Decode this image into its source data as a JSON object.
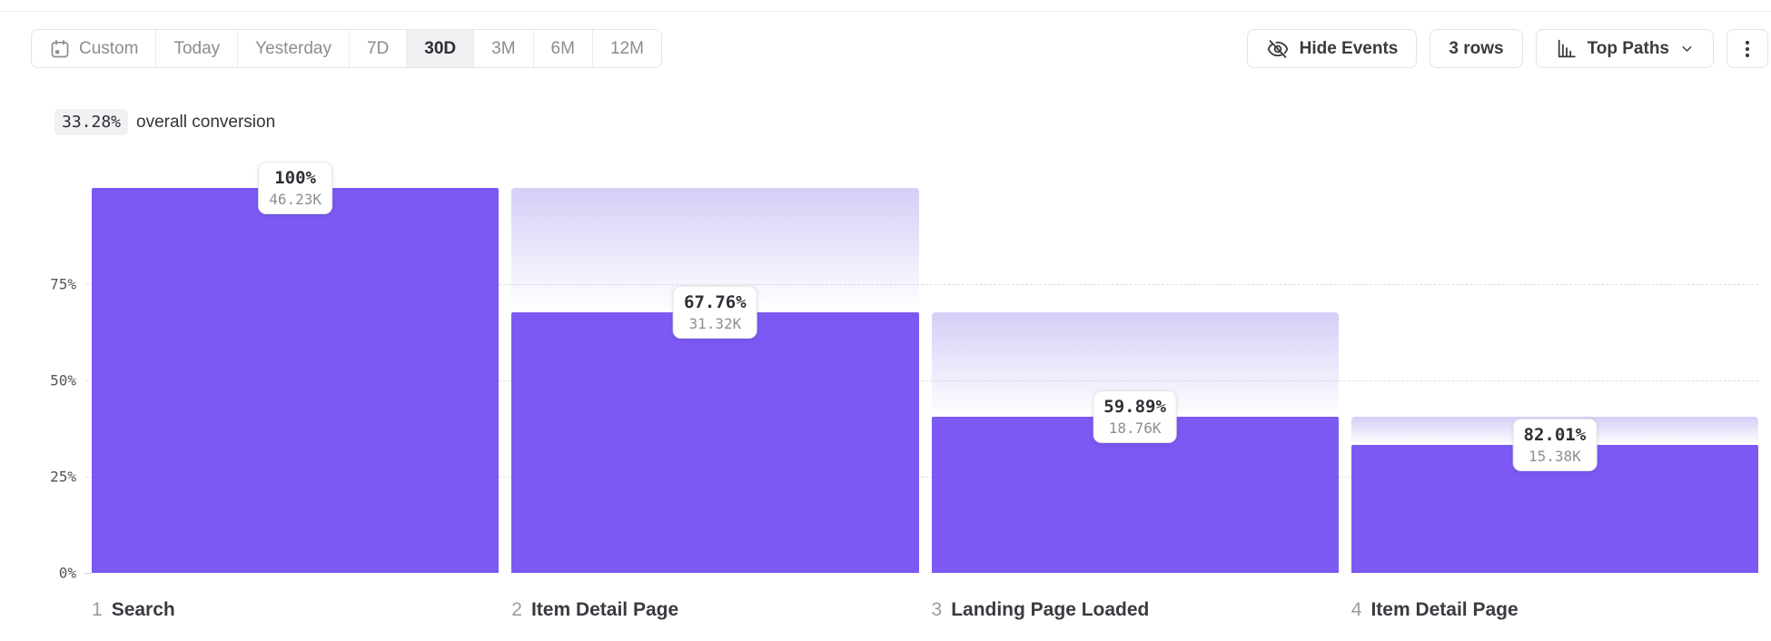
{
  "toolbar": {
    "date_ranges": [
      {
        "label": "Custom",
        "selected": false,
        "icon": "calendar-icon"
      },
      {
        "label": "Today",
        "selected": false
      },
      {
        "label": "Yesterday",
        "selected": false
      },
      {
        "label": "7D",
        "selected": false
      },
      {
        "label": "30D",
        "selected": true
      },
      {
        "label": "3M",
        "selected": false
      },
      {
        "label": "6M",
        "selected": false
      },
      {
        "label": "12M",
        "selected": false
      }
    ],
    "hide_events_label": "Hide Events",
    "rows_label": "3 rows",
    "top_paths_label": "Top Paths"
  },
  "summary": {
    "value": "33.28%",
    "label": "overall conversion"
  },
  "chart_data": {
    "type": "bar",
    "subtype": "funnel",
    "title": "33.28% overall conversion",
    "ylabel": "",
    "xlabel": "",
    "ylim": [
      0,
      100
    ],
    "grid": "horizontal dashed at 25%, 50%, 75%",
    "legend": "none",
    "yticks": [
      {
        "label": "75%",
        "value": 75
      },
      {
        "label": "50%",
        "value": 50
      },
      {
        "label": "25%",
        "value": 25
      },
      {
        "label": "0%",
        "value": 0
      }
    ],
    "overall_conversion_pct": 33.28,
    "steps": [
      {
        "index": 1,
        "name": "Search",
        "conversion_label": "100%",
        "conversion_pct": 100.0,
        "count_label": "46.23K",
        "count_k": 46.23,
        "percent_of_total": 100.0
      },
      {
        "index": 2,
        "name": "Item Detail Page",
        "conversion_label": "67.76%",
        "conversion_pct": 67.76,
        "count_label": "31.32K",
        "count_k": 31.32,
        "percent_of_total": 67.75
      },
      {
        "index": 3,
        "name": "Landing Page Loaded",
        "conversion_label": "59.89%",
        "conversion_pct": 59.89,
        "count_label": "18.76K",
        "count_k": 18.76,
        "percent_of_total": 40.58
      },
      {
        "index": 4,
        "name": "Item Detail Page",
        "conversion_label": "82.01%",
        "conversion_pct": 82.01,
        "count_label": "15.38K",
        "count_k": 15.38,
        "percent_of_total": 33.27
      }
    ],
    "colors": {
      "bar": "#7b59f2",
      "ghost_gradient_top": "#d5cef7",
      "gridline": "#dededf"
    }
  }
}
